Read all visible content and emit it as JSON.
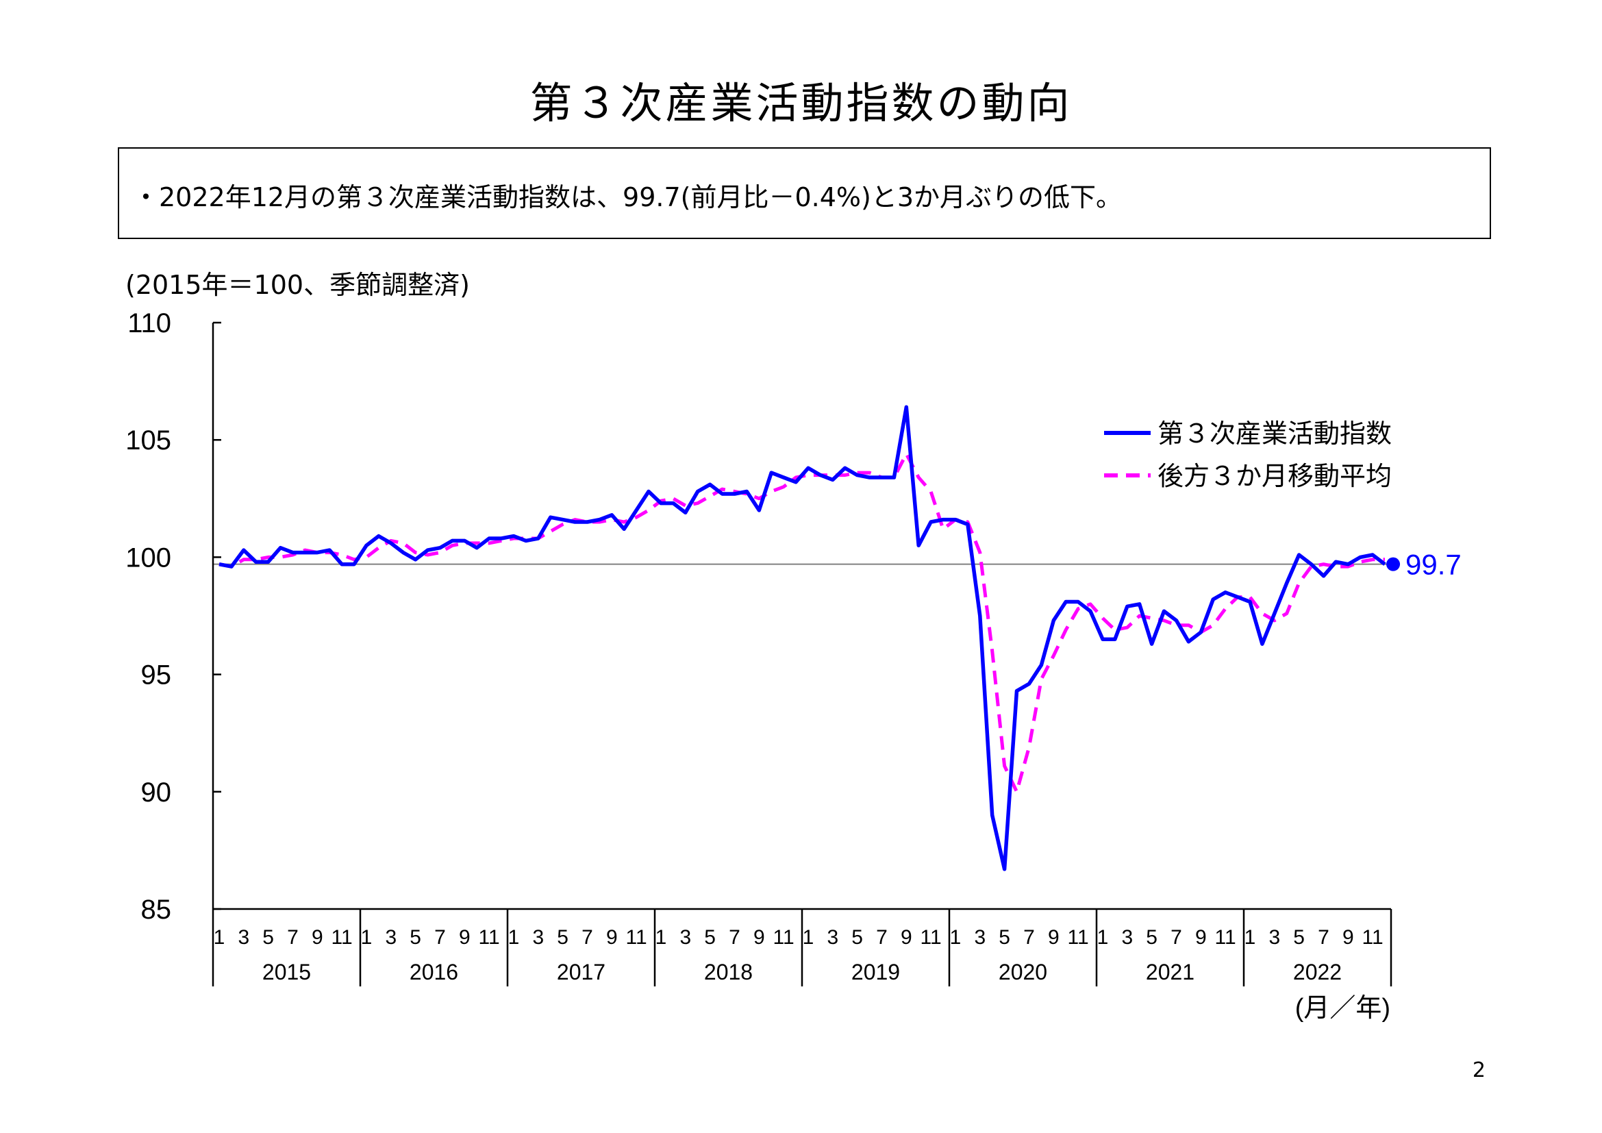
{
  "title": "第３次産業活動指数の動向",
  "summary": "・2022年12月の第３次産業活動指数は、99.7(前月比－0.4%)と3か月ぶりの低下。",
  "unit_note": "(2015年＝100、季節調整済)",
  "page_number": "2",
  "colors": {
    "index": "#0000ff",
    "moving_avg": "#ff00ff",
    "baseline": "#808080",
    "axis": "#000000"
  },
  "chart_data": {
    "type": "line",
    "ylim": [
      85,
      110
    ],
    "y_ticks": [
      "85",
      "90",
      "95",
      "100",
      "105",
      "110"
    ],
    "month_tick_labels": [
      "1",
      "3",
      "5",
      "7",
      "9",
      "11"
    ],
    "years": [
      "2015",
      "2016",
      "2017",
      "2018",
      "2019",
      "2020",
      "2021",
      "2022"
    ],
    "x_unit_label": "(月／年)",
    "reference_line": 99.7,
    "end_label": "99.7",
    "series": [
      {
        "name": "第３次産業活動指数",
        "style": "solid",
        "color": "#0000ff",
        "values": [
          99.7,
          99.6,
          100.3,
          99.8,
          99.8,
          100.4,
          100.2,
          100.2,
          100.2,
          100.3,
          99.7,
          99.7,
          100.5,
          100.9,
          100.6,
          100.2,
          99.9,
          100.3,
          100.4,
          100.7,
          100.7,
          100.4,
          100.8,
          100.8,
          100.9,
          100.7,
          100.8,
          101.7,
          101.6,
          101.5,
          101.5,
          101.6,
          101.8,
          101.2,
          102.0,
          102.8,
          102.3,
          102.3,
          101.9,
          102.8,
          103.1,
          102.7,
          102.7,
          102.8,
          102.0,
          103.6,
          103.4,
          103.2,
          103.8,
          103.5,
          103.3,
          103.8,
          103.5,
          103.4,
          103.4,
          103.4,
          106.4,
          100.5,
          101.5,
          101.6,
          101.6,
          101.4,
          97.5,
          89.0,
          86.7,
          94.3,
          94.6,
          95.4,
          97.3,
          98.1,
          98.1,
          97.7,
          96.5,
          96.5,
          97.9,
          98.0,
          96.3,
          97.7,
          97.3,
          96.4,
          96.8,
          98.2,
          98.5,
          98.3,
          98.1,
          96.3,
          97.6,
          98.9,
          100.1,
          99.7,
          99.2,
          99.8,
          99.7,
          100.0,
          100.1,
          99.7
        ]
      },
      {
        "name": "後方３か月移動平均",
        "style": "dashed",
        "color": "#ff00ff",
        "values": [
          99.7,
          99.6,
          99.9,
          99.9,
          100.0,
          100.0,
          100.1,
          100.3,
          100.2,
          100.2,
          100.1,
          99.9,
          100.0,
          100.4,
          100.7,
          100.6,
          100.2,
          100.1,
          100.2,
          100.5,
          100.6,
          100.6,
          100.6,
          100.7,
          100.8,
          100.8,
          100.8,
          101.1,
          101.4,
          101.6,
          101.5,
          101.5,
          101.6,
          101.5,
          101.7,
          102.0,
          102.4,
          102.5,
          102.2,
          102.3,
          102.6,
          102.9,
          102.8,
          102.7,
          102.5,
          102.8,
          103.0,
          103.4,
          103.5,
          103.5,
          103.5,
          103.5,
          103.6,
          103.6,
          103.4,
          103.4,
          104.4,
          103.4,
          102.8,
          101.2,
          101.6,
          101.5,
          100.2,
          96.0,
          91.1,
          90.0,
          91.9,
          94.8,
          95.8,
          96.9,
          97.8,
          98.0,
          97.4,
          96.9,
          97.0,
          97.5,
          97.4,
          97.3,
          97.1,
          97.1,
          96.8,
          97.1,
          97.8,
          98.3,
          98.3,
          97.6,
          97.3,
          97.6,
          98.9,
          99.6,
          99.7,
          99.6,
          99.6,
          99.8,
          99.9,
          99.9
        ]
      }
    ]
  }
}
